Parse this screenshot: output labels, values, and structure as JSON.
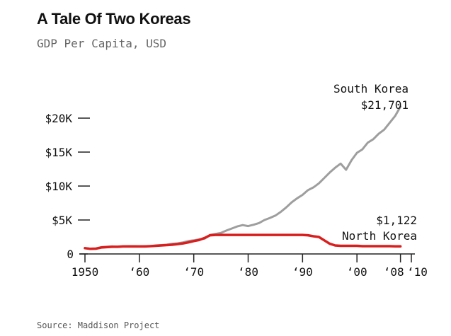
{
  "header": {
    "title": "A Tale Of Two Koreas",
    "subtitle": "GDP Per Capita, USD"
  },
  "footer": {
    "source": "Source: Maddison Project"
  },
  "chart_data": {
    "type": "line",
    "title": "A Tale Of Two Koreas",
    "subtitle": "GDP Per Capita, USD",
    "xlabel": "",
    "ylabel": "",
    "xlim": [
      1950,
      2010
    ],
    "ylim": [
      0,
      22000
    ],
    "grid": false,
    "legend": "direct labels at line ends",
    "x_ticks": [
      {
        "value": 1950,
        "label": "1950"
      },
      {
        "value": 1960,
        "label": "‘60"
      },
      {
        "value": 1970,
        "label": "‘70"
      },
      {
        "value": 1980,
        "label": "‘80"
      },
      {
        "value": 1990,
        "label": "‘90"
      },
      {
        "value": 2000,
        "label": "‘00"
      },
      {
        "value": 2008,
        "label": "‘08"
      },
      {
        "value": 2010,
        "label": "‘10"
      }
    ],
    "y_ticks": [
      {
        "value": 0,
        "label": "0"
      },
      {
        "value": 5000,
        "label": "$5K"
      },
      {
        "value": 10000,
        "label": "$10K"
      },
      {
        "value": 15000,
        "label": "$15K"
      },
      {
        "value": 20000,
        "label": "$20K"
      }
    ],
    "x": [
      1950,
      1951,
      1952,
      1953,
      1954,
      1955,
      1956,
      1957,
      1958,
      1959,
      1960,
      1961,
      1962,
      1963,
      1964,
      1965,
      1966,
      1967,
      1968,
      1969,
      1970,
      1971,
      1972,
      1973,
      1974,
      1975,
      1976,
      1977,
      1978,
      1979,
      1980,
      1981,
      1982,
      1983,
      1984,
      1985,
      1986,
      1987,
      1988,
      1989,
      1990,
      1991,
      1992,
      1993,
      1994,
      1995,
      1996,
      1997,
      1998,
      1999,
      2000,
      2001,
      2002,
      2003,
      2004,
      2005,
      2006,
      2007,
      2008
    ],
    "series": [
      {
        "name": "South Korea",
        "color": "#9e9e9e",
        "end_label": "South Korea",
        "end_value_label": "$21,701",
        "values": [
          850,
          750,
          780,
          1000,
          1050,
          1100,
          1050,
          1100,
          1150,
          1150,
          1100,
          1150,
          1150,
          1250,
          1300,
          1350,
          1500,
          1550,
          1700,
          1900,
          2000,
          2150,
          2250,
          2800,
          2950,
          3100,
          3450,
          3750,
          4050,
          4250,
          4100,
          4300,
          4550,
          5000,
          5300,
          5650,
          6200,
          6850,
          7600,
          8200,
          8700,
          9400,
          9800,
          10400,
          11200,
          12000,
          12700,
          13300,
          12400,
          13800,
          14900,
          15400,
          16400,
          16900,
          17700,
          18300,
          19300,
          20300,
          21701
        ]
      },
      {
        "name": "North Korea",
        "color": "#d91e1e",
        "end_label": "North Korea",
        "end_value_label": "$1,122",
        "values": [
          850,
          750,
          780,
          950,
          1000,
          1050,
          1050,
          1100,
          1100,
          1100,
          1100,
          1100,
          1150,
          1200,
          1250,
          1300,
          1350,
          1450,
          1550,
          1700,
          1900,
          2050,
          2350,
          2750,
          2800,
          2800,
          2800,
          2800,
          2800,
          2800,
          2800,
          2800,
          2800,
          2800,
          2800,
          2800,
          2800,
          2800,
          2800,
          2800,
          2800,
          2750,
          2600,
          2500,
          2000,
          1500,
          1250,
          1200,
          1200,
          1200,
          1200,
          1150,
          1150,
          1150,
          1150,
          1150,
          1150,
          1120,
          1122
        ]
      }
    ]
  }
}
